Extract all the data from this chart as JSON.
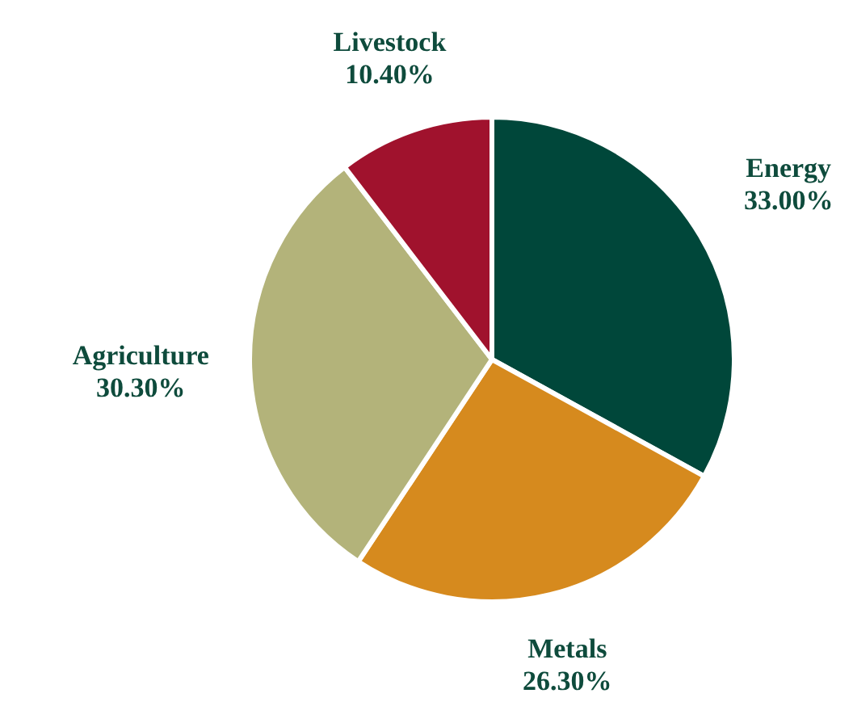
{
  "chart_data": {
    "type": "pie",
    "categories": [
      "Energy",
      "Metals",
      "Agriculture",
      "Livestock"
    ],
    "values": [
      33.0,
      26.3,
      30.3,
      10.4
    ],
    "colors": [
      "#00473a",
      "#d68a1e",
      "#b3b37a",
      "#a0122d"
    ],
    "value_labels": [
      "33.00%",
      "26.30%",
      "30.30%",
      "10.40%"
    ]
  }
}
